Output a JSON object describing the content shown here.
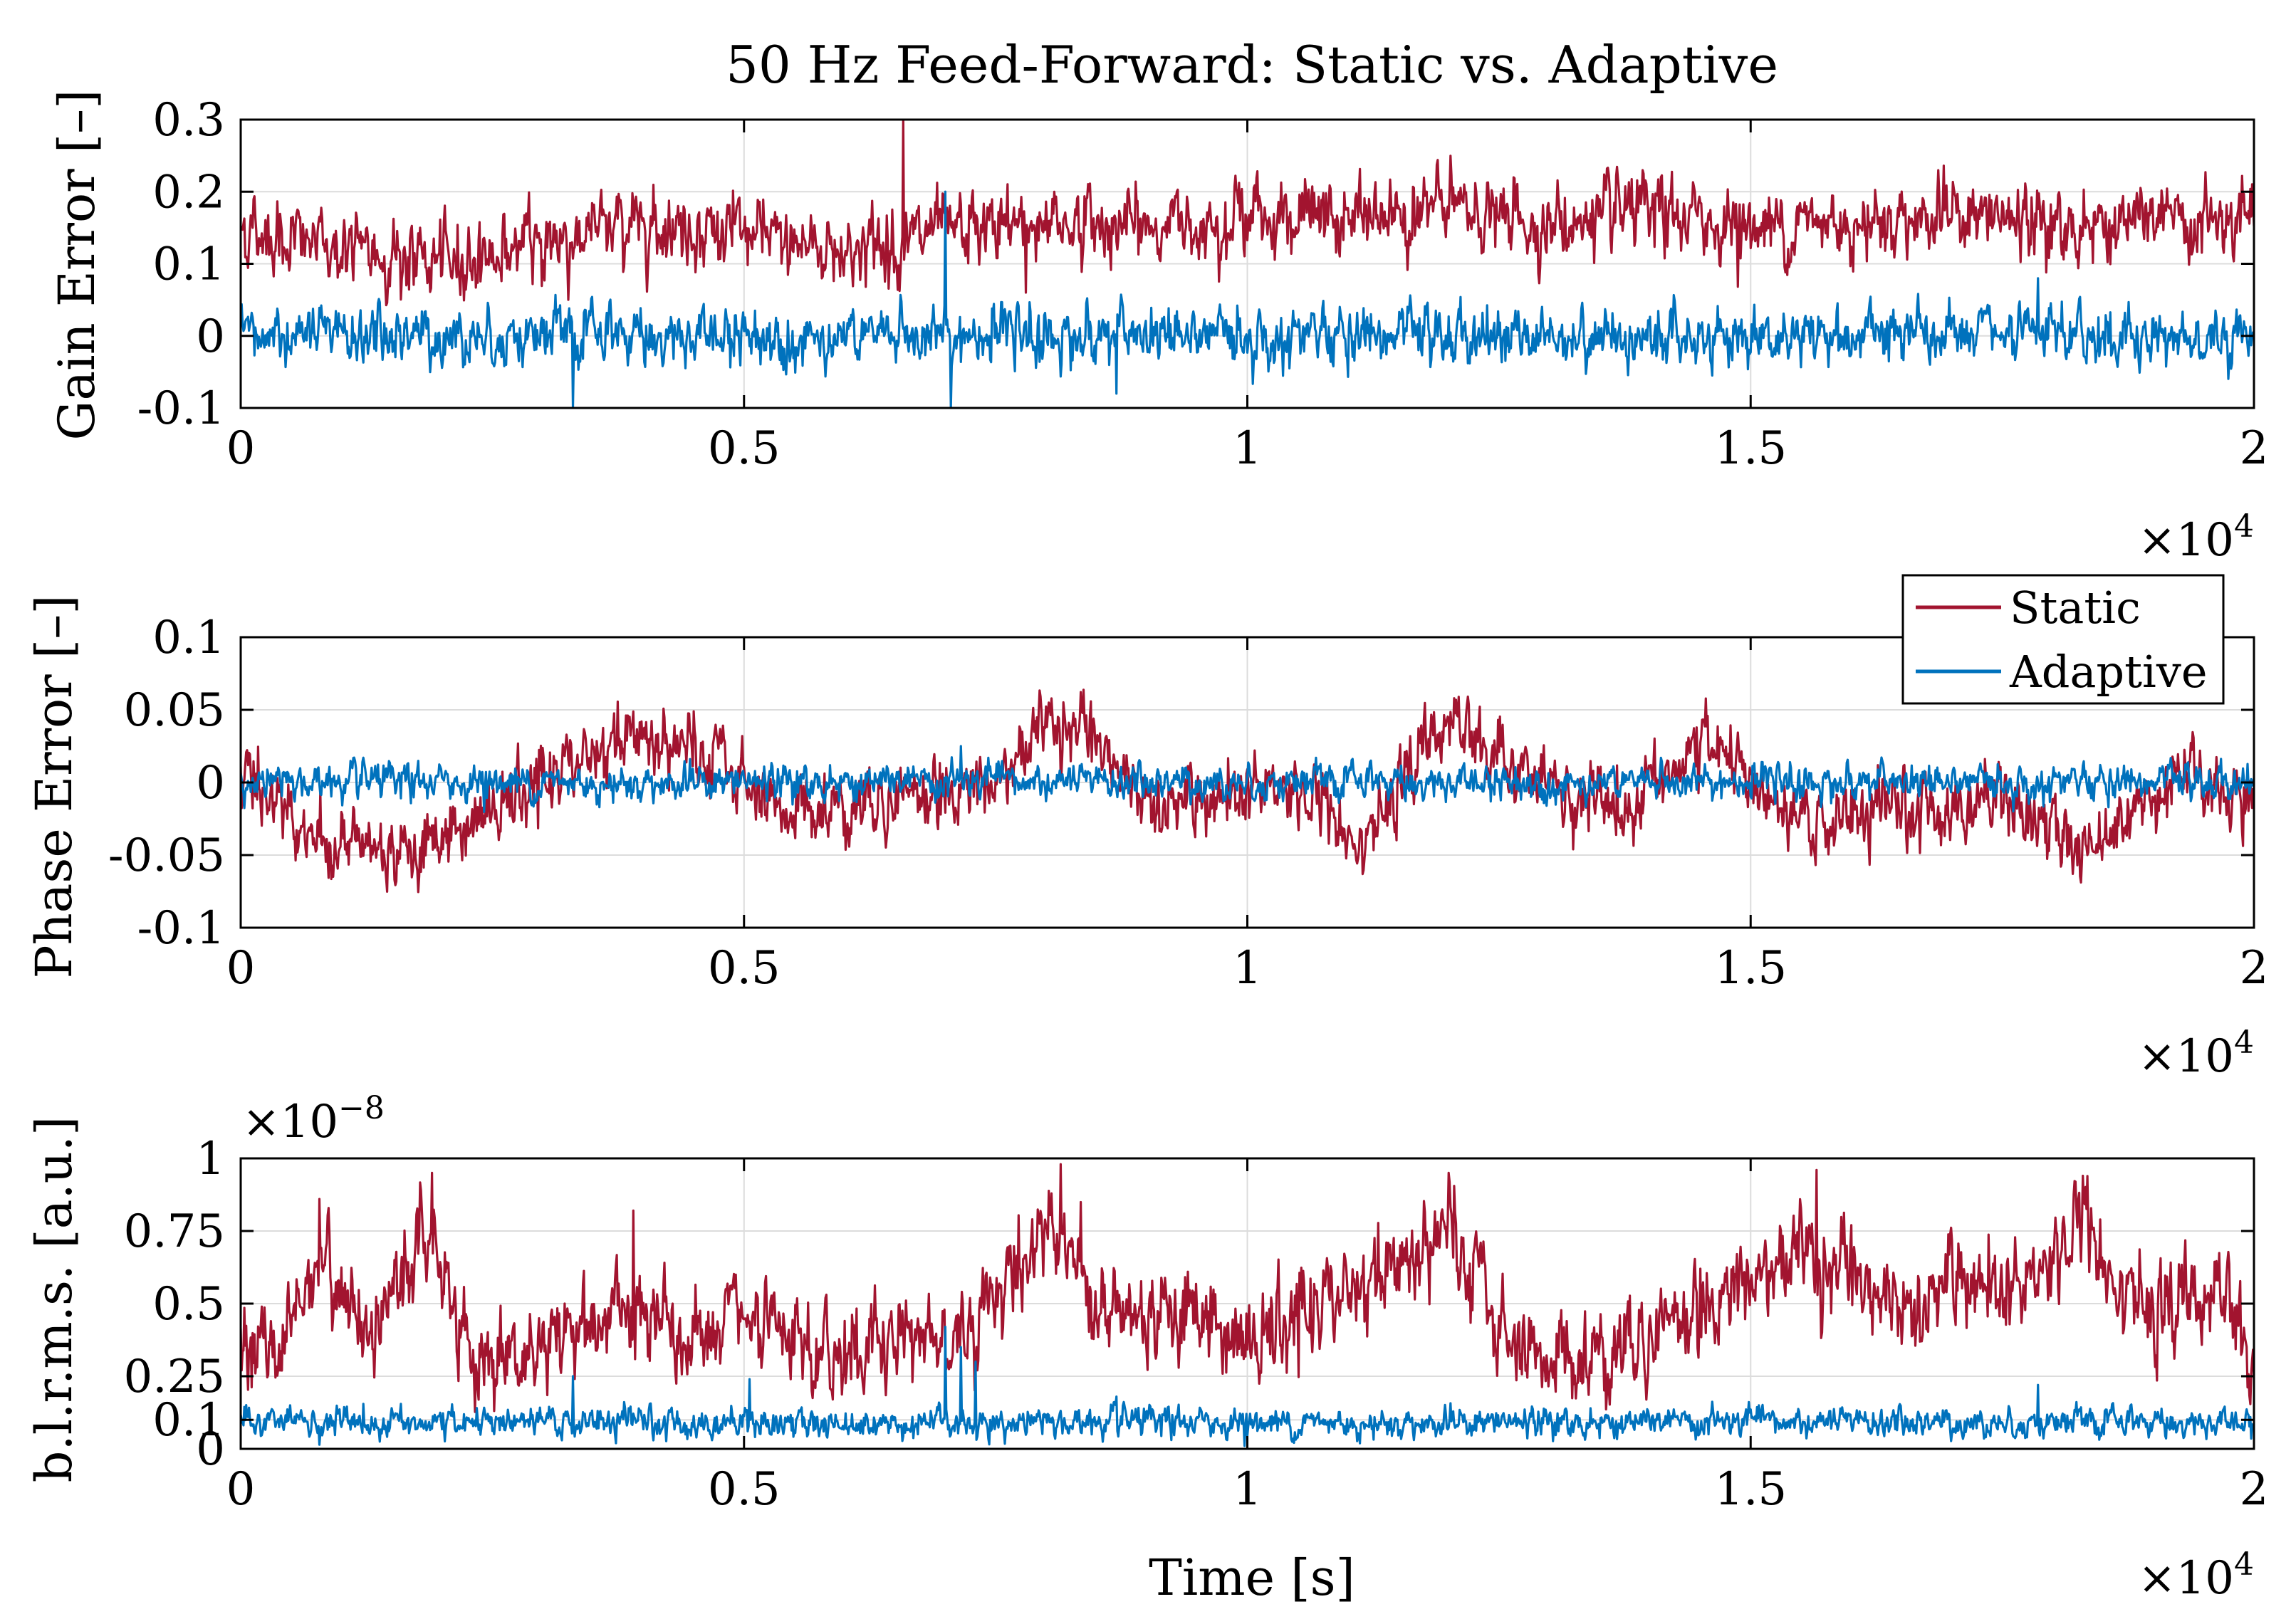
{
  "chart_data": {
    "type": "line",
    "title": "50 Hz Feed-Forward: Static vs. Adaptive",
    "xlabel": "Time [s]",
    "x_range": [
      0,
      20000
    ],
    "x_exponent_label": "×10",
    "x_exponent_power": "4",
    "x_ticks": [
      0,
      5000,
      10000,
      15000,
      20000
    ],
    "x_tick_labels": [
      "0",
      "0.5",
      "1",
      "1.5",
      "2"
    ],
    "legend": {
      "location": "top-right of the phase error panel",
      "entries": [
        {
          "label": "Static",
          "color": "#A2142F"
        },
        {
          "label": "Adaptive",
          "color": "#0072BD"
        }
      ]
    },
    "grid": true,
    "subplots": [
      {
        "name": "gain",
        "ylabel": "Gain Error [–]",
        "ylim": [
          -0.1,
          0.3
        ],
        "y_ticks": [
          -0.1,
          0,
          0.1,
          0.2,
          0.3
        ],
        "y_tick_labels": [
          "-0.1",
          "0",
          "0.1",
          "0.2",
          "0.3"
        ],
        "series": [
          {
            "name": "Static",
            "color": "#A2142F",
            "x": [
              0,
              1000,
              2000,
              3000,
              4000,
              5000,
              6000,
              7000,
              8000,
              9000,
              10000,
              11000,
              12000,
              13000,
              14000,
              15000,
              16000,
              17000,
              18000,
              19000,
              20000
            ],
            "y": [
              0.15,
              0.12,
              0.1,
              0.13,
              0.16,
              0.14,
              0.12,
              0.14,
              0.16,
              0.15,
              0.17,
              0.16,
              0.18,
              0.15,
              0.17,
              0.15,
              0.16,
              0.17,
              0.15,
              0.16,
              0.15
            ],
            "noise": 0.025,
            "spikes": [
              {
                "x": 6580,
                "y": 0.3
              },
              {
                "x": 3250,
                "y": 0.05
              },
              {
                "x": 7800,
                "y": 0.06
              }
            ]
          },
          {
            "name": "Adaptive",
            "color": "#0072BD",
            "x": [
              0,
              5000,
              10000,
              15000,
              20000
            ],
            "y": [
              0.0,
              0.0,
              0.0,
              0.0,
              0.0
            ],
            "noise": 0.02,
            "spikes": [
              {
                "x": 7050,
                "y": -0.105
              },
              {
                "x": 7000,
                "y": 0.2
              },
              {
                "x": 3300,
                "y": -0.1
              },
              {
                "x": 8700,
                "y": -0.08
              },
              {
                "x": 17850,
                "y": -0.085
              },
              {
                "x": 17850,
                "y": 0.08
              }
            ]
          }
        ]
      },
      {
        "name": "phase",
        "ylabel": "Phase Error [–]",
        "ylim": [
          -0.1,
          0.1
        ],
        "y_ticks": [
          -0.1,
          -0.05,
          0,
          0.05,
          0.1
        ],
        "y_tick_labels": [
          "-0.1",
          "-0.05",
          "0",
          "0.05",
          "0.1"
        ],
        "series": [
          {
            "name": "Static",
            "color": "#A2142F",
            "x": [
              0,
              800,
              1600,
              2000,
              3000,
              3900,
              4500,
              5500,
              6500,
              7500,
              8100,
              8800,
              9500,
              10500,
              11200,
              12000,
              12800,
              13700,
              14600,
              15400,
              16500,
              17500,
              18300,
              19200,
              20000
            ],
            "y": [
              0.01,
              -0.04,
              -0.045,
              -0.04,
              0.0,
              0.035,
              0.02,
              -0.02,
              -0.01,
              0.0,
              0.05,
              0.0,
              -0.02,
              -0.005,
              -0.035,
              0.045,
              0.0,
              -0.02,
              0.03,
              -0.03,
              -0.02,
              -0.01,
              -0.045,
              0.005,
              -0.01
            ],
            "noise": 0.012,
            "spikes": []
          },
          {
            "name": "Adaptive",
            "color": "#0072BD",
            "x": [
              0,
              5000,
              10000,
              15000,
              20000
            ],
            "y": [
              0.0,
              0.0,
              0.0,
              0.0,
              0.0
            ],
            "noise": 0.006,
            "spikes": [
              {
                "x": 7150,
                "y": 0.025
              }
            ]
          }
        ]
      },
      {
        "name": "blrms",
        "ylabel": "b.l.r.m.s. [a.u.]",
        "ylim": [
          0,
          1
        ],
        "y_exponent_label": "×10",
        "y_exponent_power": "−8",
        "y_ticks": [
          0,
          0.1,
          0.25,
          0.5,
          0.75,
          1
        ],
        "y_tick_labels": [
          "0",
          "0.1",
          "0.25",
          "0.5",
          "0.75",
          "1"
        ],
        "series": [
          {
            "name": "Static",
            "color": "#A2142F",
            "x": [
              0,
              400,
              800,
              1200,
              1900,
              2300,
              3000,
              3500,
              4000,
              4500,
              5000,
              5700,
              6500,
              7200,
              8100,
              8600,
              9300,
              10000,
              10800,
              11300,
              12000,
              12500,
              13200,
              14000,
              14800,
              15600,
              16200,
              17000,
              17700,
              18300,
              19000,
              19700,
              20000
            ],
            "y": [
              0.35,
              0.35,
              0.7,
              0.4,
              0.75,
              0.3,
              0.35,
              0.45,
              0.45,
              0.35,
              0.45,
              0.3,
              0.4,
              0.4,
              0.8,
              0.45,
              0.5,
              0.35,
              0.5,
              0.6,
              0.75,
              0.4,
              0.3,
              0.4,
              0.55,
              0.7,
              0.5,
              0.55,
              0.5,
              0.8,
              0.45,
              0.55,
              0.3
            ],
            "noise": 0.08,
            "spikes": [
              {
                "x": 8150,
                "y": 0.98
              },
              {
                "x": 1900,
                "y": 0.95
              },
              {
                "x": 15650,
                "y": 0.96
              },
              {
                "x": 12000,
                "y": 0.95
              },
              {
                "x": 18300,
                "y": 0.94
              },
              {
                "x": 780,
                "y": 0.86
              },
              {
                "x": 3900,
                "y": 0.82
              }
            ]
          },
          {
            "name": "Adaptive",
            "color": "#0072BD",
            "x": [
              0,
              5000,
              10000,
              15000,
              20000
            ],
            "y": [
              0.09,
              0.09,
              0.09,
              0.09,
              0.09
            ],
            "noise": 0.025,
            "spikes": [
              {
                "x": 7000,
                "y": 0.42
              },
              {
                "x": 7150,
                "y": 0.35
              },
              {
                "x": 7300,
                "y": 0.3
              },
              {
                "x": 3300,
                "y": 0.25
              },
              {
                "x": 5050,
                "y": 0.24
              },
              {
                "x": 17850,
                "y": 0.22
              },
              {
                "x": 8700,
                "y": 0.18
              }
            ]
          }
        ]
      }
    ]
  }
}
